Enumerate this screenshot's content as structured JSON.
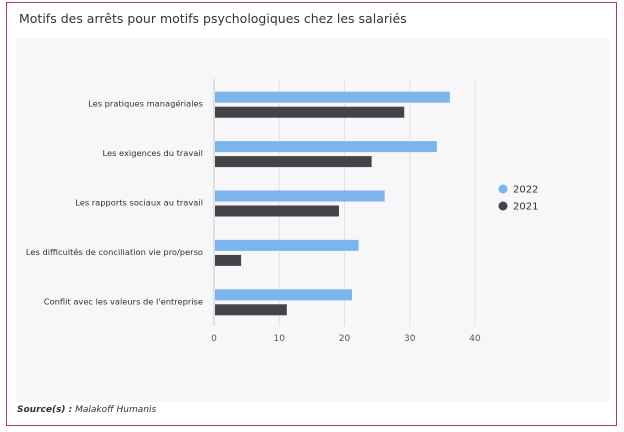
{
  "title": "Motifs des arrêts pour motifs psychologiques chez les salariés",
  "source_label": "Source(s) :",
  "source_value": "Malakoff Humanis",
  "colors": {
    "2022": "#7cb5ec",
    "2021": "#434348",
    "frame": "#a23a6c"
  },
  "chart_data": {
    "type": "bar",
    "orientation": "horizontal",
    "title": "Motifs des arrêts pour motifs psychologiques chez les salariés",
    "categories": [
      "Les pratiques managériales",
      "Les exigences du travail",
      "Les rapports sociaux au travail",
      "Les difficultés de conciliation vie pro/perso",
      "Conflit avec les valeurs de l'entreprise"
    ],
    "series": [
      {
        "name": "2022",
        "values": [
          36,
          34,
          26,
          22,
          21
        ]
      },
      {
        "name": "2021",
        "values": [
          29,
          24,
          19,
          4,
          11
        ]
      }
    ],
    "xticks": [
      "0",
      "10",
      "20",
      "30",
      "40"
    ],
    "xlim": [
      0,
      40
    ],
    "grid": true,
    "legend": "right"
  }
}
